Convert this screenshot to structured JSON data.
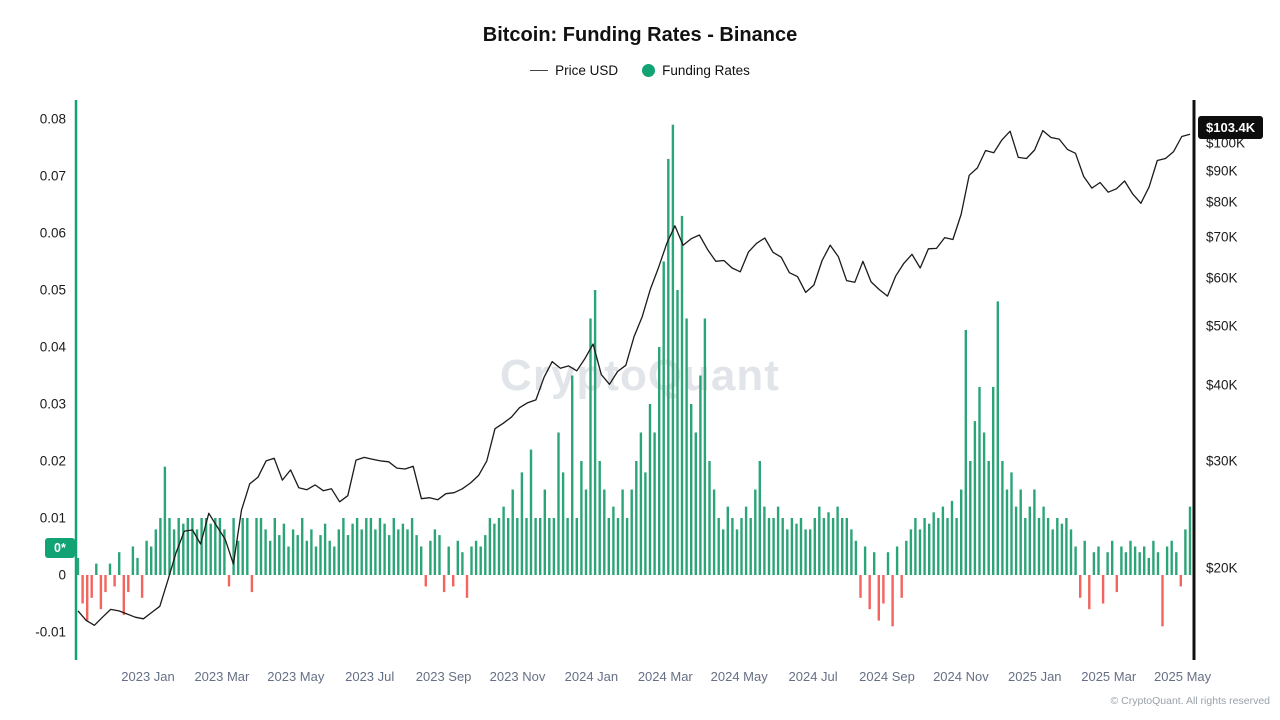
{
  "header": {
    "title": "Bitcoin: Funding Rates - Binance"
  },
  "legend": {
    "price_label": "Price USD",
    "funding_label": "Funding Rates"
  },
  "badges": {
    "price": "$103.4K",
    "funding": "0*"
  },
  "watermark": {
    "text": "CryptoQuant"
  },
  "footer": {
    "copyright": "© CryptoQuant. All rights reserved"
  },
  "colors": {
    "positive_bar": "#2ba577",
    "negative_bar": "#f4645f",
    "accent_green": "#12a374",
    "price_line": "#1b1b1b",
    "axis_black": "#111111",
    "x_label_gray": "#667085"
  },
  "chart_data": {
    "type": "bar",
    "title": "Bitcoin: Funding Rates - Binance",
    "series_info": [
      {
        "name": "Price USD",
        "type": "line",
        "axis": "right",
        "scale": "log"
      },
      {
        "name": "Funding Rates",
        "type": "bar",
        "axis": "left",
        "scale": "linear"
      }
    ],
    "left_axis": {
      "labels": [
        "0.08",
        "0.07",
        "0.06",
        "0.05",
        "0.04",
        "0.03",
        "0.02",
        "0.01",
        "0",
        "-0.01"
      ],
      "values": [
        0.08,
        0.07,
        0.06,
        0.05,
        0.04,
        0.03,
        0.02,
        0.01,
        0,
        -0.01
      ],
      "range": [
        -0.013,
        0.083
      ]
    },
    "right_axis": {
      "labels": [
        "$100K",
        "$90K",
        "$80K",
        "$70K",
        "$60K",
        "$50K",
        "$40K",
        "$30K",
        "$20K"
      ],
      "values_k": [
        100,
        90,
        80,
        70,
        60,
        50,
        40,
        30,
        20
      ],
      "range_k": [
        15,
        110
      ]
    },
    "x_ticks": [
      "2023 Jan",
      "2023 Mar",
      "2023 May",
      "2023 Jul",
      "2023 Sep",
      "2023 Nov",
      "2024 Jan",
      "2024 Mar",
      "2024 May",
      "2024 Jul",
      "2024 Sep",
      "2024 Nov",
      "2025 Jan",
      "2025 Mar",
      "2025 May"
    ],
    "x_range": [
      "2022 Nov",
      "2025 May"
    ],
    "funding_rates": [
      0.003,
      -0.005,
      -0.008,
      -0.004,
      0.002,
      -0.006,
      -0.003,
      0.002,
      -0.002,
      0.004,
      -0.007,
      -0.003,
      0.005,
      0.003,
      -0.004,
      0.006,
      0.005,
      0.008,
      0.01,
      0.019,
      0.01,
      0.008,
      0.01,
      0.009,
      0.01,
      0.01,
      0.008,
      0.01,
      0.01,
      0.009,
      0.01,
      0.01,
      0.008,
      -0.002,
      0.01,
      0.006,
      0.01,
      0.01,
      -0.003,
      0.01,
      0.01,
      0.008,
      0.006,
      0.01,
      0.007,
      0.009,
      0.005,
      0.008,
      0.007,
      0.01,
      0.006,
      0.008,
      0.005,
      0.007,
      0.009,
      0.006,
      0.005,
      0.008,
      0.01,
      0.007,
      0.009,
      0.01,
      0.008,
      0.01,
      0.01,
      0.008,
      0.01,
      0.009,
      0.007,
      0.01,
      0.008,
      0.009,
      0.008,
      0.01,
      0.007,
      0.005,
      -0.002,
      0.006,
      0.008,
      0.007,
      -0.003,
      0.005,
      -0.002,
      0.006,
      0.004,
      -0.004,
      0.005,
      0.006,
      0.005,
      0.007,
      0.01,
      0.009,
      0.01,
      0.012,
      0.01,
      0.015,
      0.01,
      0.018,
      0.01,
      0.022,
      0.01,
      0.01,
      0.015,
      0.01,
      0.01,
      0.025,
      0.018,
      0.01,
      0.035,
      0.01,
      0.02,
      0.015,
      0.045,
      0.05,
      0.02,
      0.015,
      0.01,
      0.012,
      0.01,
      0.015,
      0.01,
      0.015,
      0.02,
      0.025,
      0.018,
      0.03,
      0.025,
      0.04,
      0.055,
      0.073,
      0.079,
      0.05,
      0.063,
      0.045,
      0.03,
      0.025,
      0.035,
      0.045,
      0.02,
      0.015,
      0.01,
      0.008,
      0.012,
      0.01,
      0.008,
      0.01,
      0.012,
      0.01,
      0.015,
      0.02,
      0.012,
      0.01,
      0.01,
      0.012,
      0.01,
      0.008,
      0.01,
      0.009,
      0.01,
      0.008,
      0.008,
      0.01,
      0.012,
      0.01,
      0.011,
      0.01,
      0.012,
      0.01,
      0.01,
      0.008,
      0.006,
      -0.004,
      0.005,
      -0.006,
      0.004,
      -0.008,
      -0.005,
      0.004,
      -0.009,
      0.005,
      -0.004,
      0.006,
      0.008,
      0.01,
      0.008,
      0.01,
      0.009,
      0.011,
      0.01,
      0.012,
      0.01,
      0.013,
      0.01,
      0.015,
      0.043,
      0.02,
      0.027,
      0.033,
      0.025,
      0.02,
      0.033,
      0.048,
      0.02,
      0.015,
      0.018,
      0.012,
      0.015,
      0.01,
      0.012,
      0.015,
      0.01,
      0.012,
      0.01,
      0.008,
      0.01,
      0.009,
      0.01,
      0.008,
      0.005,
      -0.004,
      0.006,
      -0.006,
      0.004,
      0.005,
      -0.005,
      0.004,
      0.006,
      -0.003,
      0.005,
      0.004,
      0.006,
      0.005,
      0.004,
      0.005,
      0.003,
      0.006,
      0.004,
      -0.009,
      0.005,
      0.006,
      0.004,
      -0.002,
      0.008,
      0.012
    ],
    "price_usd_k": [
      17.0,
      16.4,
      16.1,
      16.6,
      17.1,
      17.0,
      16.8,
      16.6,
      16.5,
      16.9,
      17.3,
      19.1,
      21.2,
      23.0,
      23.1,
      21.9,
      24.6,
      23.4,
      22.3,
      20.3,
      24.9,
      27.5,
      28.2,
      30.0,
      30.3,
      27.9,
      29.0,
      27.1,
      26.9,
      27.4,
      26.8,
      27.0,
      25.7,
      26.3,
      30.1,
      30.4,
      30.2,
      30.0,
      29.9,
      29.2,
      29.1,
      29.4,
      26.0,
      26.1,
      25.9,
      26.5,
      26.6,
      27.0,
      27.6,
      28.4,
      30.0,
      33.9,
      34.6,
      35.4,
      36.7,
      37.4,
      37.8,
      41.2,
      43.7,
      42.6,
      43.0,
      42.2,
      44.2,
      46.7,
      41.6,
      40.1,
      42.1,
      43.1,
      48.0,
      51.8,
      57.5,
      62.4,
      68.3,
      73.1,
      67.9,
      69.6,
      70.6,
      66.8,
      63.9,
      64.1,
      62.3,
      61.4,
      66.2,
      68.4,
      69.8,
      66.1,
      64.9,
      61.2,
      60.3,
      56.8,
      58.4,
      64.1,
      67.9,
      65.0,
      59.4,
      59.0,
      63.9,
      59.1,
      57.4,
      56.0,
      60.4,
      63.4,
      65.6,
      62.3,
      67.0,
      67.1,
      69.9,
      69.4,
      76.3,
      88.5,
      91.0,
      97.2,
      96.4,
      101.2,
      104.6,
      94.7,
      94.3,
      97.4,
      104.8,
      102.1,
      101.5,
      97.6,
      96.2,
      88.1,
      84.3,
      86.1,
      83.0,
      84.1,
      86.6,
      82.4,
      79.6,
      84.7,
      93.6,
      94.3,
      96.8,
      102.5,
      103.4
    ],
    "last_values": {
      "price": "$103.4K",
      "funding_rate": "0*"
    }
  }
}
